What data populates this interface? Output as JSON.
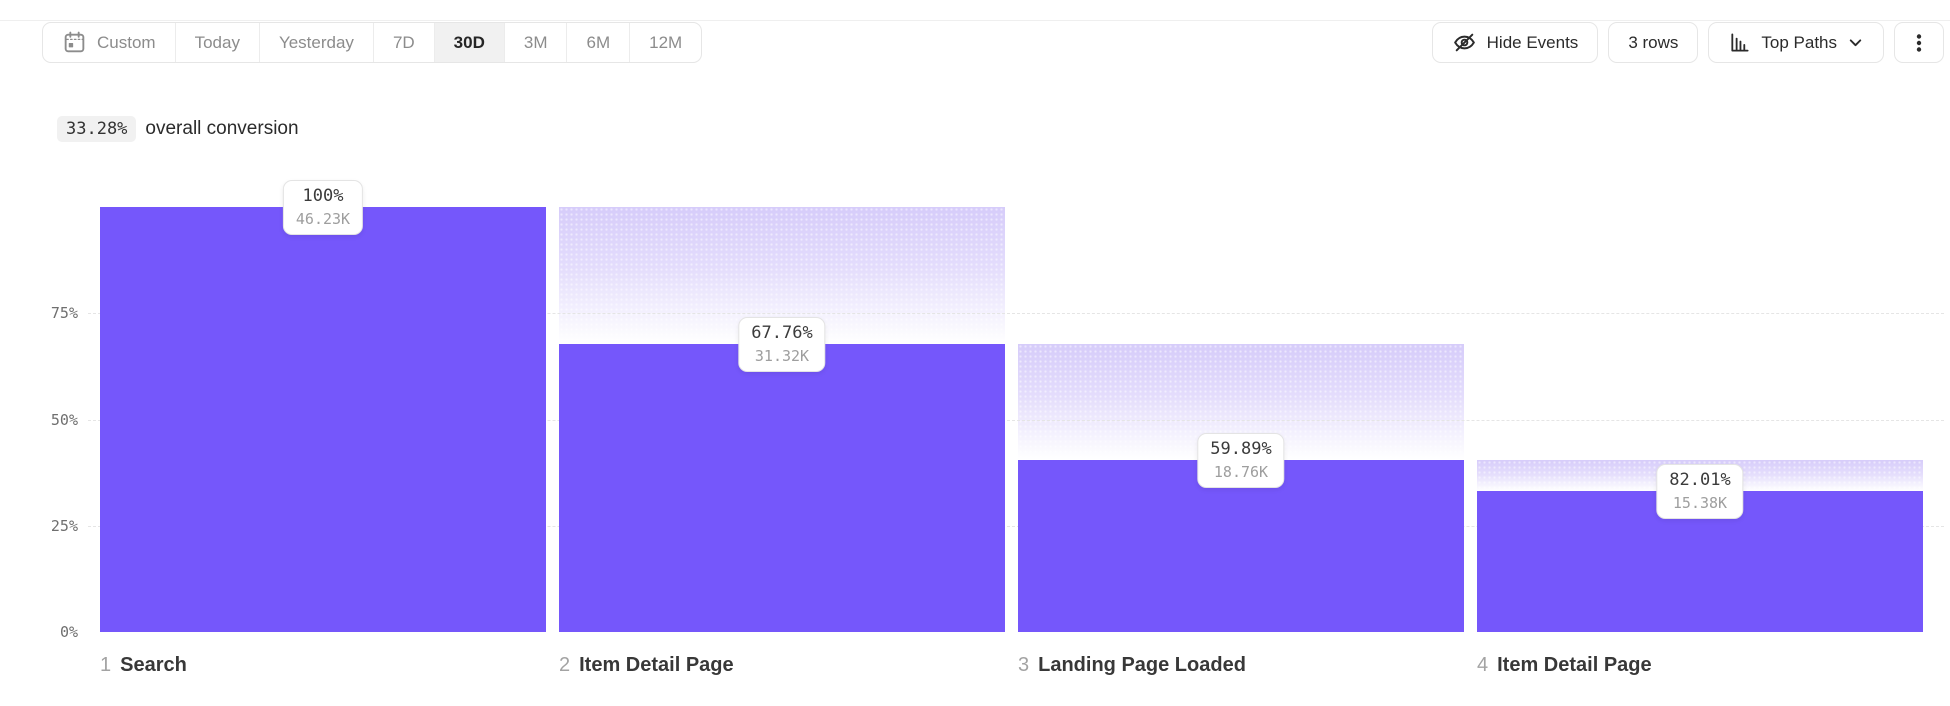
{
  "toolbar": {
    "date_ranges": [
      {
        "label": "Custom",
        "selected": false,
        "icon": "calendar"
      },
      {
        "label": "Today",
        "selected": false
      },
      {
        "label": "Yesterday",
        "selected": false
      },
      {
        "label": "7D",
        "selected": false
      },
      {
        "label": "30D",
        "selected": true
      },
      {
        "label": "3M",
        "selected": false
      },
      {
        "label": "6M",
        "selected": false
      },
      {
        "label": "12M",
        "selected": false
      }
    ],
    "hide_events_label": "Hide Events",
    "rows_label": "3 rows",
    "view_label": "Top Paths"
  },
  "summary": {
    "value": "33.28%",
    "text": "overall conversion"
  },
  "chart_data": {
    "type": "bar",
    "subtype": "funnel",
    "title": "33.28% overall conversion",
    "ylim": [
      0,
      100
    ],
    "grid": "dashed-horizontal",
    "legend": "none",
    "bar_color": "#7557FB",
    "dropoff_gradient_top_color": "#D6CCFA",
    "y_ticks": [
      {
        "label": "75%",
        "value": 75
      },
      {
        "label": "50%",
        "value": 50
      },
      {
        "label": "25%",
        "value": 25
      },
      {
        "label": "0%",
        "value": 0
      }
    ],
    "steps": [
      {
        "index": "1",
        "name": "Search",
        "conversion_label": "100%",
        "count_label": "46.23K",
        "pct_of_first": 100
      },
      {
        "index": "2",
        "name": "Item Detail Page",
        "conversion_label": "67.76%",
        "count_label": "31.32K",
        "pct_of_first": 67.74
      },
      {
        "index": "3",
        "name": "Landing Page Loaded",
        "conversion_label": "59.89%",
        "count_label": "18.76K",
        "pct_of_first": 40.58
      },
      {
        "index": "4",
        "name": "Item Detail Page",
        "conversion_label": "82.01%",
        "count_label": "15.38K",
        "pct_of_first": 33.27
      }
    ]
  }
}
